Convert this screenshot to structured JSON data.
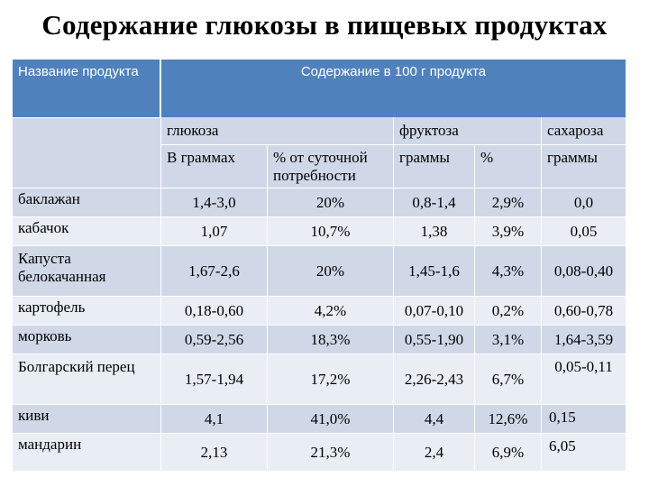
{
  "title": "Содержание глюкозы в пищевых продуктах",
  "header": {
    "name_col": "Название продукта",
    "group": "Содержание в 100 г продукта",
    "glucose": "глюкоза",
    "fructose": "фруктоза",
    "sucrose": "сахароза",
    "grams": "В граммах",
    "pct_daily": "% от суточной потребности",
    "grams2": "граммы",
    "pct": "%",
    "grams3": "граммы"
  },
  "rows": [
    {
      "name": "баклажан",
      "g": "1,4-3,0",
      "gp": "20%",
      "f": "0,8-1,4",
      "fp": "2,9%",
      "s": "0,0"
    },
    {
      "name": "кабачок",
      "g": "1,07",
      "gp": "10,7%",
      "f": "1,38",
      "fp": "3,9%",
      "s": "0,05"
    },
    {
      "name": "Капуста белокачанная",
      "g": "1,67-2,6",
      "gp": "20%",
      "f": "1,45-1,6",
      "fp": "4,3%",
      "s": "0,08-0,40"
    },
    {
      "name": "картофель",
      "g": "0,18-0,60",
      "gp": "4,2%",
      "f": "0,07-0,10",
      "fp": "0,2%",
      "s": "0,60-0,78"
    },
    {
      "name": "морковь",
      "g": "0,59-2,56",
      "gp": "18,3%",
      "f": "0,55-1,90",
      "fp": "3,1%",
      "s": "1,64-3,59"
    },
    {
      "name": "Болгарский перец",
      "g": "1,57-1,94",
      "gp": "17,2%",
      "f": "2,26-2,43",
      "fp": "6,7%",
      "s": "0,05-0,11"
    },
    {
      "name": "киви",
      "g": "4,1",
      "gp": "41,0%",
      "f": "4,4",
      "fp": "12,6%",
      "s": "0,15"
    },
    {
      "name": "мандарин",
      "g": "2,13",
      "gp": "21,3%",
      "f": "2,4",
      "fp": "6,9%",
      "s": "6,05"
    }
  ],
  "colors": {
    "header": "#4f81bd",
    "row_dark": "#d0d8e8",
    "row_light": "#e9edf4"
  }
}
